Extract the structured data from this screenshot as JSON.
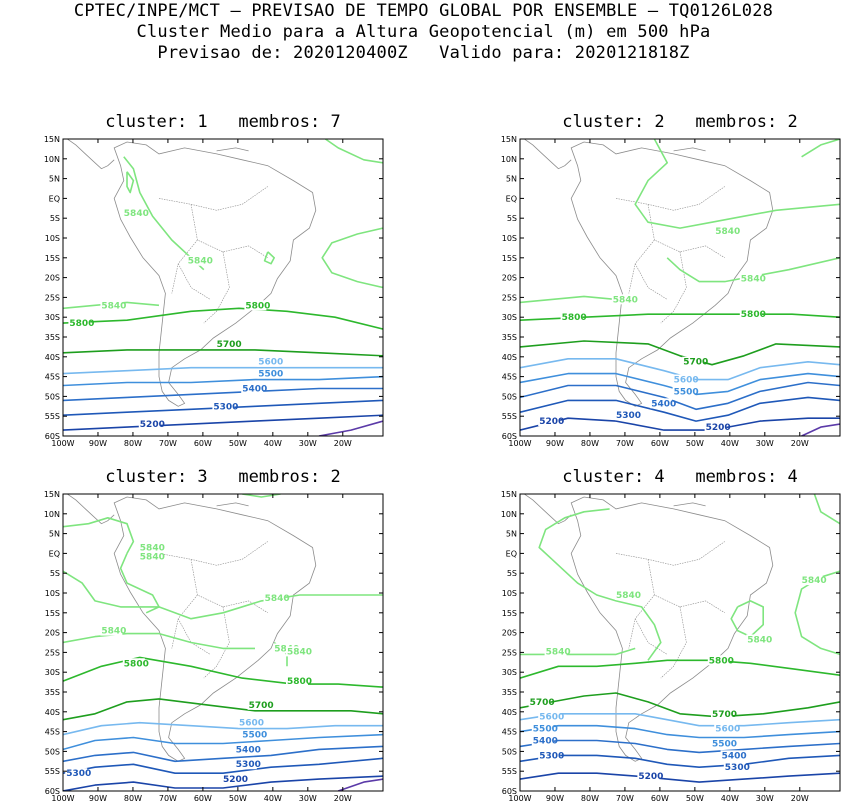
{
  "header": {
    "line1": "CPTEC/INPE/MCT – PREVISAO DE TEMPO GLOBAL POR ENSEMBLE – TQ0126L028",
    "line2": "Cluster Medio para a Altura Geopotencial (m) em 500 hPa",
    "line3": "Previsao de: 2020120400Z   Valido para: 2020121818Z"
  },
  "axes": {
    "lat_labels": [
      "15N",
      "10N",
      "5N",
      "EQ",
      "5S",
      "10S",
      "15S",
      "20S",
      "25S",
      "30S",
      "35S",
      "40S",
      "45S",
      "50S",
      "55S",
      "60S"
    ],
    "lon_labels": [
      "100W",
      "90W",
      "80W",
      "70W",
      "60W",
      "50W",
      "40W",
      "30W",
      "20W"
    ]
  },
  "colors": {
    "c5840": "#7fe57f",
    "c5800": "#2db82d",
    "c5700": "#1e9e1e",
    "c5600": "#77b9ef",
    "c5500": "#3f8fdc",
    "c5400": "#2c6fc9",
    "c5300": "#1f58b8",
    "c5200": "#1a44a8",
    "c5100": "#5b3aa8",
    "coast": "#8c8c8c"
  },
  "panels": [
    {
      "title": "cluster: 1   membros: 7",
      "labels": [
        {
          "text": "5840",
          "level": "c5840"
        },
        {
          "text": "5840",
          "level": "c5840"
        },
        {
          "text": "5840",
          "level": "c5840"
        },
        {
          "text": "5800",
          "level": "c5800"
        },
        {
          "text": "5800",
          "level": "c5800"
        },
        {
          "text": "5700",
          "level": "c5700"
        },
        {
          "text": "5600",
          "level": "c5600"
        },
        {
          "text": "5500",
          "level": "c5500"
        },
        {
          "text": "5400",
          "level": "c5400"
        },
        {
          "text": "5300",
          "level": "c5300"
        },
        {
          "text": "5200",
          "level": "c5200"
        }
      ]
    },
    {
      "title": "cluster: 2   membros: 2",
      "labels": [
        {
          "text": "5840",
          "level": "c5840"
        },
        {
          "text": "5840",
          "level": "c5840"
        },
        {
          "text": "5840",
          "level": "c5840"
        },
        {
          "text": "5800",
          "level": "c5800"
        },
        {
          "text": "5800",
          "level": "c5800"
        },
        {
          "text": "5700",
          "level": "c5700"
        },
        {
          "text": "5600",
          "level": "c5600"
        },
        {
          "text": "5500",
          "level": "c5500"
        },
        {
          "text": "5400",
          "level": "c5400"
        },
        {
          "text": "5300",
          "level": "c5300"
        },
        {
          "text": "5200",
          "level": "c5200"
        },
        {
          "text": "5200",
          "level": "c5200"
        }
      ]
    },
    {
      "title": "cluster: 3   membros: 2",
      "labels": [
        {
          "text": "5840",
          "level": "c5840"
        },
        {
          "text": "5840",
          "level": "c5840"
        },
        {
          "text": "5840",
          "level": "c5840"
        },
        {
          "text": "5840",
          "level": "c5840"
        },
        {
          "text": "5840",
          "level": "c5840"
        },
        {
          "text": "5840",
          "level": "c5840"
        },
        {
          "text": "5800",
          "level": "c5800"
        },
        {
          "text": "5800",
          "level": "c5800"
        },
        {
          "text": "5700",
          "level": "c5700"
        },
        {
          "text": "5600",
          "level": "c5600"
        },
        {
          "text": "5500",
          "level": "c5500"
        },
        {
          "text": "5400",
          "level": "c5400"
        },
        {
          "text": "5300",
          "level": "c5300"
        },
        {
          "text": "5300",
          "level": "c5300"
        },
        {
          "text": "5200",
          "level": "c5200"
        }
      ]
    },
    {
      "title": "cluster: 4   membros: 4",
      "labels": [
        {
          "text": "5840",
          "level": "c5840"
        },
        {
          "text": "5840",
          "level": "c5840"
        },
        {
          "text": "5840",
          "level": "c5840"
        },
        {
          "text": "5840",
          "level": "c5840"
        },
        {
          "text": "5800",
          "level": "c5800"
        },
        {
          "text": "5700",
          "level": "c5700"
        },
        {
          "text": "5700",
          "level": "c5700"
        },
        {
          "text": "5600",
          "level": "c5600"
        },
        {
          "text": "5600",
          "level": "c5600"
        },
        {
          "text": "5500",
          "level": "c5500"
        },
        {
          "text": "5500",
          "level": "c5500"
        },
        {
          "text": "5400",
          "level": "c5400"
        },
        {
          "text": "5400",
          "level": "c5400"
        },
        {
          "text": "5300",
          "level": "c5300"
        },
        {
          "text": "5300",
          "level": "c5300"
        },
        {
          "text": "5200",
          "level": "c5200"
        }
      ]
    }
  ]
}
